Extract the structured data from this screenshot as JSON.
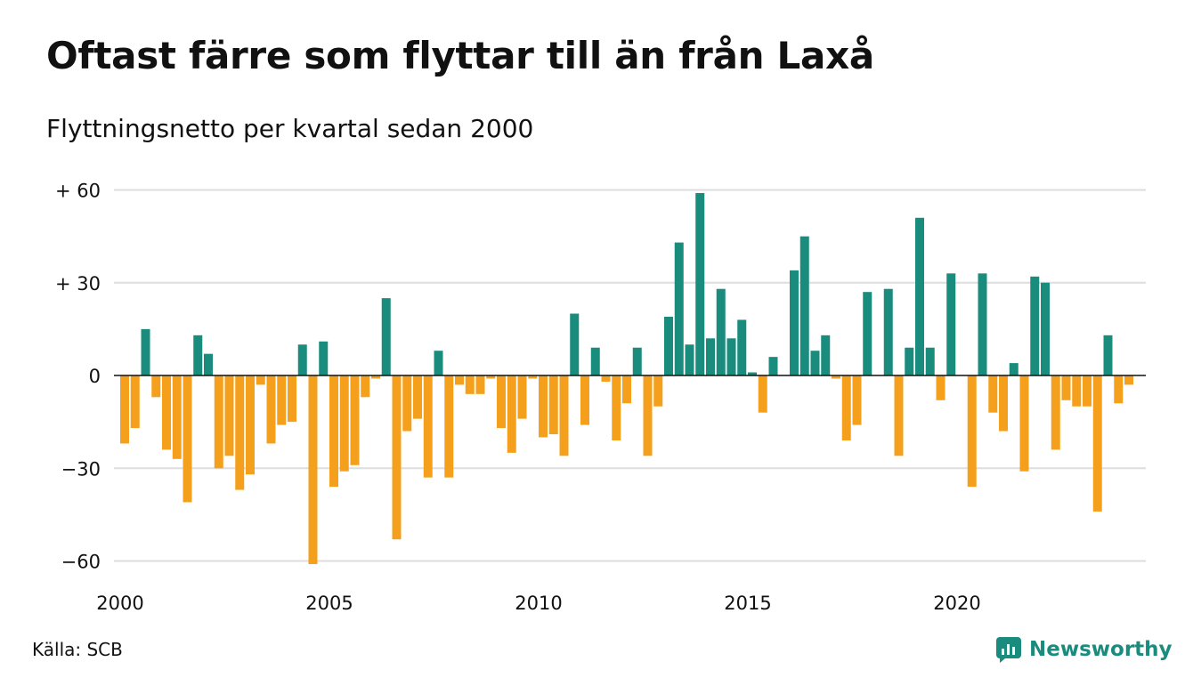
{
  "header": {
    "title": "Oftast färre som flyttar till än från Laxå",
    "subtitle": "Flyttningsnetto per kvartal sedan 2000"
  },
  "footer": {
    "source": "Källa: SCB",
    "brand": "Newsworthy"
  },
  "colors": {
    "positive": "#1a8c7e",
    "negative": "#f5a01c",
    "grid": "#dddddd",
    "zero_line": "#111111"
  },
  "chart_data": {
    "type": "bar",
    "x_start_year": 2000,
    "y_ticks": [
      {
        "value": 60,
        "label": "+ 60"
      },
      {
        "value": 30,
        "label": "+ 30"
      },
      {
        "value": 0,
        "label": "0"
      },
      {
        "value": -30,
        "label": "−30"
      },
      {
        "value": -60,
        "label": "−60"
      }
    ],
    "x_ticks": [
      "2000",
      "2005",
      "2010",
      "2015",
      "2020"
    ],
    "ylim": [
      -65,
      62
    ],
    "grid": true,
    "legend": "none",
    "values": [
      -22,
      -17,
      15,
      -7,
      -24,
      -27,
      -41,
      13,
      7,
      -30,
      -26,
      -37,
      -32,
      -3,
      -22,
      -16,
      -15,
      10,
      -61,
      11,
      -36,
      -31,
      -29,
      -7,
      -1,
      25,
      -53,
      -18,
      -14,
      -33,
      8,
      -33,
      -3,
      -6,
      -6,
      -1,
      -17,
      -25,
      -14,
      -1,
      -20,
      -19,
      -26,
      20,
      -16,
      9,
      -2,
      -21,
      -9,
      9,
      -26,
      -10,
      19,
      43,
      10,
      59,
      12,
      28,
      12,
      18,
      1,
      -12,
      6,
      0,
      34,
      45,
      8,
      13,
      -1,
      -21,
      -16,
      27,
      0,
      28,
      -26,
      9,
      51,
      9,
      -8,
      33,
      0,
      -36,
      33,
      -12,
      -18,
      4,
      -31,
      32,
      30,
      -24,
      -8,
      -10,
      -10,
      -44,
      13,
      -9,
      -3
    ]
  }
}
